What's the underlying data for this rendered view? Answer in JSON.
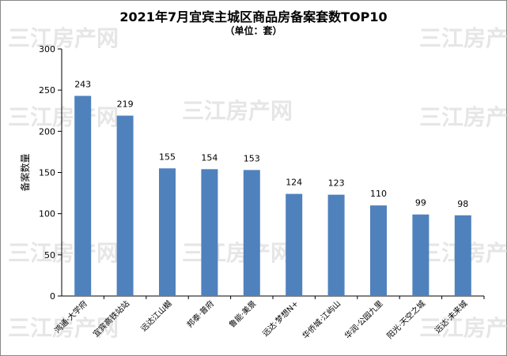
{
  "watermark": "三江房产网",
  "chart_data": {
    "type": "bar",
    "title": "2021年7月宜宾主城区商品房备案套数TOP10",
    "subtitle": "（单位：套）",
    "ylabel": "备案数量",
    "xlabel": "",
    "ylim": [
      0,
      300
    ],
    "yticks": [
      0,
      50,
      100,
      150,
      200,
      250,
      300
    ],
    "grid": false,
    "legend": "none",
    "bar_color": "#4f81bd",
    "categories": [
      "鸿通·大学府",
      "宜宾高铁站站",
      "远达江山樾",
      "邦泰·普府",
      "鲁能·美景",
      "远达·梦想N+",
      "华侨城·江屿山",
      "华润·公园九里",
      "阳光·天空之城",
      "远达·未来城"
    ],
    "values": [
      243,
      219,
      155,
      154,
      153,
      124,
      123,
      110,
      99,
      98
    ]
  }
}
